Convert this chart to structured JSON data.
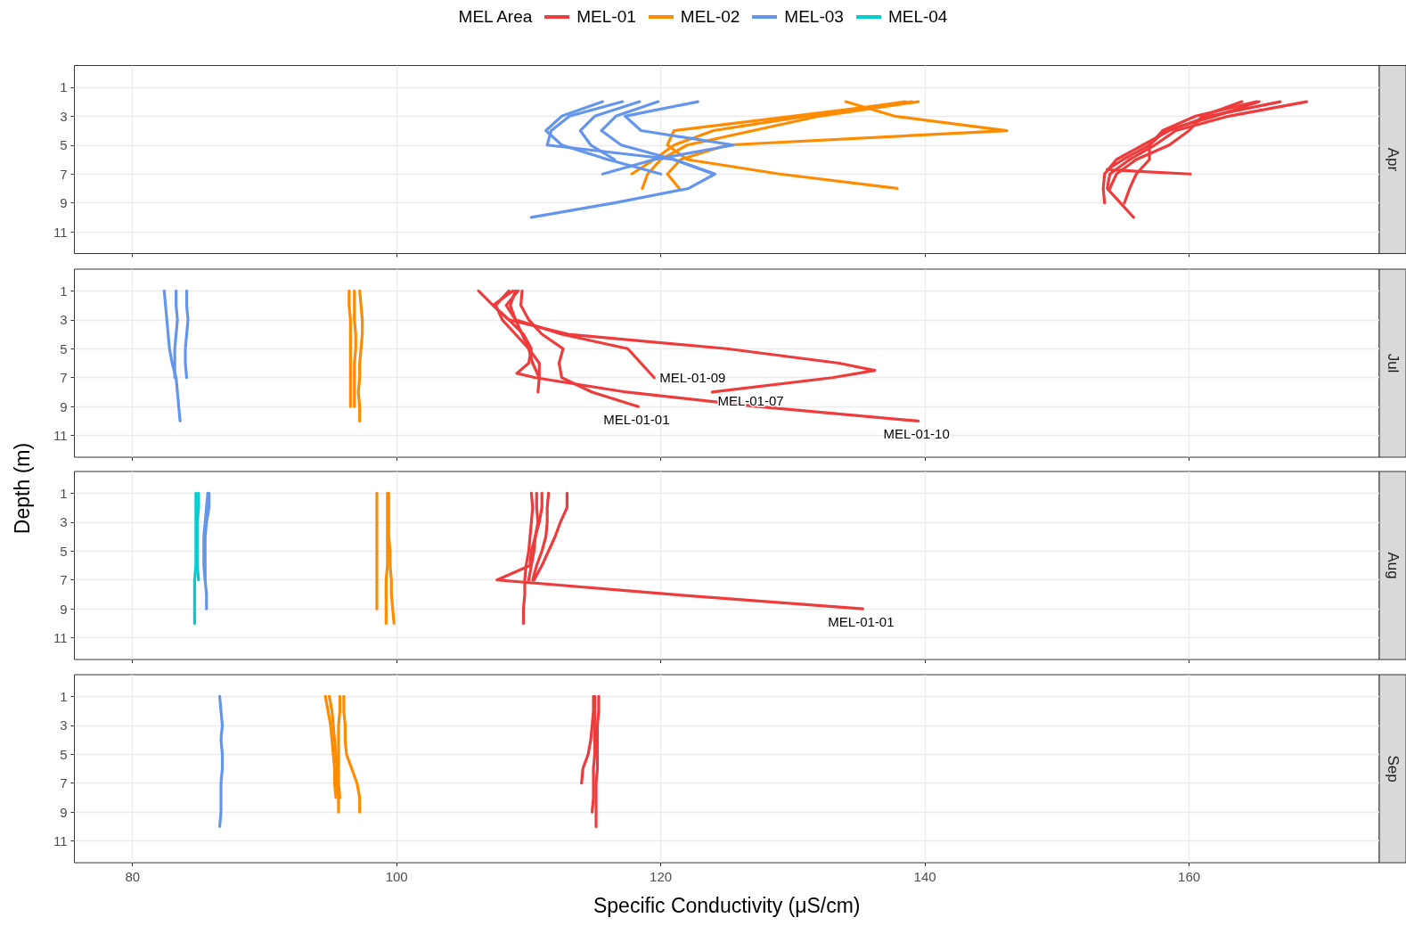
{
  "chart_data": [
    {
      "type": "line",
      "title": "Apr",
      "legend": "top",
      "legend_title": "MEL Area",
      "xlim": [
        75.6,
        174.4
      ],
      "xticks": [
        80,
        100,
        120,
        140,
        160
      ],
      "ylim": [
        12.5,
        -0.5
      ],
      "yticks": [
        1,
        3,
        5,
        7,
        9,
        11
      ],
      "grid": true,
      "tick_labels": "y",
      "marker": "none",
      "line_style": "solid",
      "series": [
        {
          "name": "MEL-01",
          "color": "#ee3b3b",
          "x": [
            168.9,
            163,
            159,
            157.4,
            155.5,
            154.0,
            153.8,
            154.8,
            155.8
          ],
          "values": [
            2,
            3,
            4,
            5,
            6,
            7,
            8,
            9,
            10
          ]
        },
        {
          "color": "#ee3b3b",
          "x": [
            166.9,
            161.5,
            158.5,
            156.5,
            154.5,
            153.6,
            153.5,
            153.6
          ],
          "values": [
            2,
            3,
            4,
            5,
            6,
            7,
            8,
            9
          ]
        },
        {
          "color": "#ee3b3b",
          "x": [
            165.3,
            162,
            158.2,
            157,
            157,
            156,
            155.5,
            155.1
          ],
          "values": [
            2,
            3,
            4,
            5,
            6,
            7,
            8,
            9
          ]
        },
        {
          "color": "#ee3b3b",
          "x": [
            165.1,
            160.5,
            158,
            157,
            155,
            153.8,
            160.1
          ],
          "values": [
            2,
            3,
            4,
            5,
            6,
            6.7,
            7
          ]
        },
        {
          "color": "#ee3b3b",
          "x": [
            164,
            161,
            160,
            158.5,
            156,
            154.5,
            154
          ],
          "values": [
            2,
            3,
            4,
            5,
            6,
            7,
            8
          ]
        },
        {
          "name": "MEL-02",
          "color": "#ff8c00",
          "x": [
            138.5,
            131,
            124,
            121,
            119.5,
            117.8
          ],
          "values": [
            2,
            3,
            4,
            5,
            6,
            7
          ]
        },
        {
          "color": "#ff8c00",
          "x": [
            139.5,
            132,
            127,
            122,
            120,
            119,
            118.6
          ],
          "values": [
            2,
            3,
            4,
            5,
            6,
            7,
            8
          ]
        },
        {
          "color": "#ff8c00",
          "x": [
            134,
            137.7,
            146.2,
            125,
            121.5,
            120.5,
            121.4
          ],
          "values": [
            2,
            3,
            4,
            5,
            6,
            7,
            8
          ]
        },
        {
          "color": "#ff8c00",
          "x": [
            139,
            130,
            121,
            120.5,
            122,
            129,
            137.9
          ],
          "values": [
            2,
            3,
            4,
            5,
            6,
            7,
            8
          ]
        },
        {
          "name": "MEL-03",
          "color": "#6495ed",
          "x": [
            115.6,
            112.5,
            111.3,
            112.5,
            116,
            120
          ],
          "values": [
            2,
            3,
            4,
            5,
            6,
            7
          ]
        },
        {
          "color": "#6495ed",
          "x": [
            117.1,
            113.1,
            111.7,
            111.4,
            121,
            124.1,
            122.1,
            116.5,
            110.2
          ],
          "values": [
            2,
            3,
            4,
            5,
            6,
            7,
            8,
            9,
            10
          ]
        },
        {
          "color": "#6495ed",
          "x": [
            118.4,
            115,
            113.9,
            114.7,
            116.5
          ],
          "values": [
            2,
            3,
            4,
            5,
            6
          ]
        },
        {
          "color": "#6495ed",
          "x": [
            119.8,
            116.6,
            115.5,
            117,
            121,
            124
          ],
          "values": [
            2,
            3,
            4,
            5,
            6,
            7
          ]
        },
        {
          "color": "#6495ed",
          "x": [
            122.8,
            117.3,
            118.5,
            125.5,
            119.5,
            115.6
          ],
          "values": [
            2,
            3,
            4,
            5,
            6,
            7
          ]
        }
      ]
    },
    {
      "type": "line",
      "title": "Jul",
      "ylabel": "Depth (m)",
      "xlim": [
        75.6,
        174.4
      ],
      "xticks": [
        80,
        100,
        120,
        140,
        160
      ],
      "ylim": [
        12.5,
        -0.5
      ],
      "yticks": [
        1,
        3,
        5,
        7,
        9,
        11
      ],
      "grid": true,
      "tick_labels": "y",
      "marker": "none",
      "line_style": "solid",
      "annotations": [
        {
          "text": "MEL-01-09",
          "x": 119.5,
          "y": 7
        },
        {
          "text": "MEL-01-07",
          "x": 123.9,
          "y": 8
        },
        {
          "text": "MEL-01-01",
          "x": 118.3,
          "y": 9
        },
        {
          "text": "MEL-01-10",
          "x": 139.5,
          "y": 10
        }
      ],
      "series": [
        {
          "color": "#ee3b3b",
          "x": [
            106.2,
            107.3,
            108.5,
            109.6,
            110.2,
            110.0,
            109.1,
            110.5,
            117.4,
            127.3,
            139.5
          ],
          "values": [
            1,
            2,
            3,
            4,
            5,
            6,
            6.7,
            7,
            8,
            9,
            10
          ]
        },
        {
          "color": "#ee3b3b",
          "x": [
            108.8,
            107.3,
            108.5,
            113,
            125,
            133.5,
            136.2,
            133,
            123.9
          ],
          "values": [
            1,
            2,
            3,
            4,
            5,
            6,
            6.5,
            7,
            8
          ]
        },
        {
          "color": "#ee3b3b",
          "x": [
            109.2,
            108.3,
            109,
            112.5,
            117.5,
            118.5,
            119.5
          ],
          "values": [
            1,
            2,
            3,
            4,
            5,
            6,
            7
          ]
        },
        {
          "color": "#ee3b3b",
          "x": [
            109.5,
            109.4,
            110,
            111,
            112.6,
            112.3,
            112.5,
            114.8,
            118.3
          ],
          "values": [
            1,
            2,
            3,
            4,
            5,
            6,
            7,
            8,
            9
          ]
        },
        {
          "color": "#ee3b3b",
          "x": [
            109.0,
            108.6,
            109.0,
            109.5,
            110.0,
            110.3,
            110.8,
            110.7
          ],
          "values": [
            1,
            2,
            3,
            4,
            5,
            6,
            7,
            8
          ]
        },
        {
          "color": "#ee3b3b",
          "x": [
            108.5,
            107.5,
            108.0,
            109.0,
            110.0,
            110.8,
            110.8
          ],
          "values": [
            1,
            2,
            3,
            4,
            5,
            6,
            7
          ]
        },
        {
          "color": "#ff8c00",
          "x": [
            96.4,
            96.4,
            96.5,
            96.5,
            96.5,
            96.5,
            96.5,
            96.5,
            96.5
          ],
          "values": [
            1,
            2,
            3,
            4,
            5,
            6,
            7,
            8,
            9
          ]
        },
        {
          "color": "#ff8c00",
          "x": [
            97.2,
            97.3,
            97.4,
            97.4,
            97.3,
            97.2,
            97.2,
            97.1,
            97.2,
            97.2
          ],
          "values": [
            1,
            2,
            3,
            4,
            5,
            6,
            7,
            8,
            9,
            10
          ]
        },
        {
          "color": "#ff8c00",
          "x": [
            96.8,
            96.8,
            96.8,
            96.9,
            96.9,
            96.8,
            96.8,
            96.8,
            96.8
          ],
          "values": [
            1,
            2,
            3,
            4,
            5,
            6,
            7,
            8,
            9
          ]
        },
        {
          "color": "#6495ed",
          "x": [
            82.4,
            82.5,
            82.6,
            82.7,
            82.8,
            83.0,
            83.3,
            83.4,
            83.5,
            83.6
          ],
          "values": [
            1,
            2,
            3,
            4,
            5,
            6,
            7,
            8,
            9,
            10
          ]
        },
        {
          "color": "#6495ed",
          "x": [
            83.3,
            83.3,
            83.4,
            83.3,
            83.2,
            83.2,
            83.2
          ],
          "values": [
            1,
            2,
            3,
            4,
            5,
            6,
            7
          ]
        },
        {
          "color": "#6495ed",
          "x": [
            84.1,
            84.1,
            84.2,
            84.1,
            84.0,
            84.0,
            84.1
          ],
          "values": [
            1,
            2,
            3,
            4,
            5,
            6,
            7
          ]
        }
      ]
    },
    {
      "type": "line",
      "title": "Aug",
      "xlim": [
        75.6,
        174.4
      ],
      "xticks": [
        80,
        100,
        120,
        140,
        160
      ],
      "ylim": [
        12.5,
        -0.5
      ],
      "yticks": [
        1,
        3,
        5,
        7,
        9,
        11
      ],
      "grid": true,
      "tick_labels": "y",
      "marker": "none",
      "line_style": "solid",
      "annotations": [
        {
          "text": "MEL-01-01",
          "x": 135.3,
          "y": 9
        }
      ],
      "series": [
        {
          "color": "#ee3b3b",
          "x": [
            110.6,
            110.6,
            110.7,
            110.5,
            110.2,
            110.1,
            107.6,
            120.8,
            135.3
          ],
          "values": [
            1,
            2,
            3,
            4,
            5,
            6,
            7,
            8,
            9
          ]
        },
        {
          "color": "#ee3b3b",
          "x": [
            110.2,
            110.3,
            110.2,
            110.1,
            110.0,
            109.8,
            109.7,
            109.7,
            109.6,
            109.6
          ],
          "values": [
            1,
            2,
            3,
            4,
            5,
            6,
            7,
            8,
            9,
            10
          ]
        },
        {
          "color": "#ee3b3b",
          "x": [
            111.5,
            111.4,
            111.4,
            111.3,
            111.0,
            110.6,
            110.3
          ],
          "values": [
            1,
            2,
            3,
            4,
            5,
            6,
            7
          ]
        },
        {
          "color": "#ee3b3b",
          "x": [
            112.9,
            112.9,
            112.4,
            112.0,
            111.5,
            111.0,
            110.4
          ],
          "values": [
            1,
            2,
            3,
            4,
            5,
            6,
            7
          ]
        },
        {
          "color": "#ee3b3b",
          "x": [
            111.0,
            111.0,
            110.8,
            110.5,
            110.4,
            110.2,
            110.0
          ],
          "values": [
            1,
            2,
            3,
            4,
            5,
            6,
            7
          ]
        },
        {
          "color": "#ff8c00",
          "x": [
            98.5,
            98.5,
            98.5,
            98.5,
            98.5,
            98.5,
            98.5,
            98.5,
            98.5
          ],
          "values": [
            1,
            2,
            3,
            4,
            5,
            6,
            7,
            8,
            9
          ]
        },
        {
          "color": "#ff8c00",
          "x": [
            99.3,
            99.3,
            99.3,
            99.3,
            99.3,
            99.3,
            99.2,
            99.2,
            99.2,
            99.2
          ],
          "values": [
            1,
            2,
            3,
            4,
            5,
            6,
            7,
            8,
            9,
            10
          ]
        },
        {
          "color": "#ff8c00",
          "x": [
            99.4,
            99.4,
            99.4,
            99.4,
            99.5,
            99.5,
            99.6,
            99.6,
            99.7,
            99.8
          ],
          "values": [
            1,
            2,
            3,
            4,
            5,
            6,
            7,
            8,
            9,
            10
          ]
        },
        {
          "color": "#6495ed",
          "x": [
            85.8,
            85.8,
            85.6,
            85.5,
            85.5,
            85.5,
            85.5,
            85.6,
            85.6
          ],
          "values": [
            1,
            2,
            3,
            4,
            5,
            6,
            7,
            8,
            9
          ]
        },
        {
          "color": "#6495ed",
          "x": [
            85.7,
            85.6,
            85.5,
            85.4,
            85.4,
            85.4,
            85.5
          ],
          "values": [
            1,
            2,
            3,
            4,
            5,
            6,
            7
          ]
        },
        {
          "name": "MEL-04",
          "color": "#00ced1",
          "x": [
            85.0,
            85.0,
            84.9,
            84.9,
            84.9,
            84.9,
            85.0
          ],
          "values": [
            1,
            2,
            3,
            4,
            5,
            6,
            7
          ]
        },
        {
          "color": "#00ced1",
          "x": [
            84.8,
            84.8,
            84.8,
            84.8,
            84.8,
            84.8,
            84.7,
            84.7,
            84.7,
            84.7
          ],
          "values": [
            1,
            2,
            3,
            4,
            5,
            6,
            7,
            8,
            9,
            10
          ]
        }
      ]
    },
    {
      "type": "line",
      "title": "Sep",
      "xlabel": "Specific Conductivity (μS/cm)",
      "xlim": [
        75.6,
        174.4
      ],
      "xticks": [
        80,
        100,
        120,
        140,
        160
      ],
      "ylim": [
        12.5,
        -0.5
      ],
      "yticks": [
        1,
        3,
        5,
        7,
        9,
        11
      ],
      "grid": true,
      "marker": "none",
      "line_style": "solid",
      "series": [
        {
          "color": "#ee3b3b",
          "x": [
            114.9,
            114.9,
            114.8,
            114.7,
            114.5,
            114.1,
            114.0
          ],
          "values": [
            1,
            2,
            3,
            4,
            5,
            6,
            7
          ]
        },
        {
          "color": "#ee3b3b",
          "x": [
            115.3,
            115.3,
            115.2,
            115.2,
            115.2,
            115.2,
            115.1,
            115.1,
            115.1,
            115.1
          ],
          "values": [
            1,
            2,
            3,
            4,
            5,
            6,
            7,
            8,
            9,
            10
          ]
        },
        {
          "color": "#ee3b3b",
          "x": [
            115.0,
            115.0,
            115.0,
            115.0,
            115.0,
            114.9,
            114.9,
            114.9,
            114.8
          ],
          "values": [
            1,
            2,
            3,
            4,
            5,
            6,
            7,
            8,
            9
          ]
        },
        {
          "color": "#ff8c00",
          "x": [
            94.6,
            94.8,
            95.0,
            95.1,
            95.2,
            95.3,
            95.3,
            95.4
          ],
          "values": [
            1,
            2,
            3,
            4,
            5,
            6,
            7,
            8
          ]
        },
        {
          "color": "#ff8c00",
          "x": [
            94.9,
            95.1,
            95.2,
            95.3,
            95.4,
            95.5,
            95.5,
            95.6,
            95.6
          ],
          "values": [
            1,
            2,
            3,
            4,
            5,
            6,
            7,
            8,
            9
          ]
        },
        {
          "color": "#ff8c00",
          "x": [
            95.7,
            95.7,
            95.6,
            95.6,
            95.6,
            95.6,
            95.6,
            95.7
          ],
          "values": [
            1,
            2,
            3,
            4,
            5,
            6,
            7,
            8
          ]
        },
        {
          "color": "#ff8c00",
          "x": [
            96.0,
            96.0,
            96.1,
            96.1,
            96.2,
            96.6,
            97.0,
            97.2,
            97.2
          ],
          "values": [
            1,
            2,
            3,
            4,
            5,
            6,
            7,
            8,
            9
          ]
        },
        {
          "color": "#6495ed",
          "x": [
            86.6,
            86.7,
            86.8,
            86.7,
            86.8,
            86.8,
            86.7,
            86.7,
            86.7,
            86.6
          ],
          "values": [
            1,
            2,
            3,
            4,
            5,
            6,
            7,
            8,
            9,
            10
          ]
        }
      ]
    }
  ]
}
